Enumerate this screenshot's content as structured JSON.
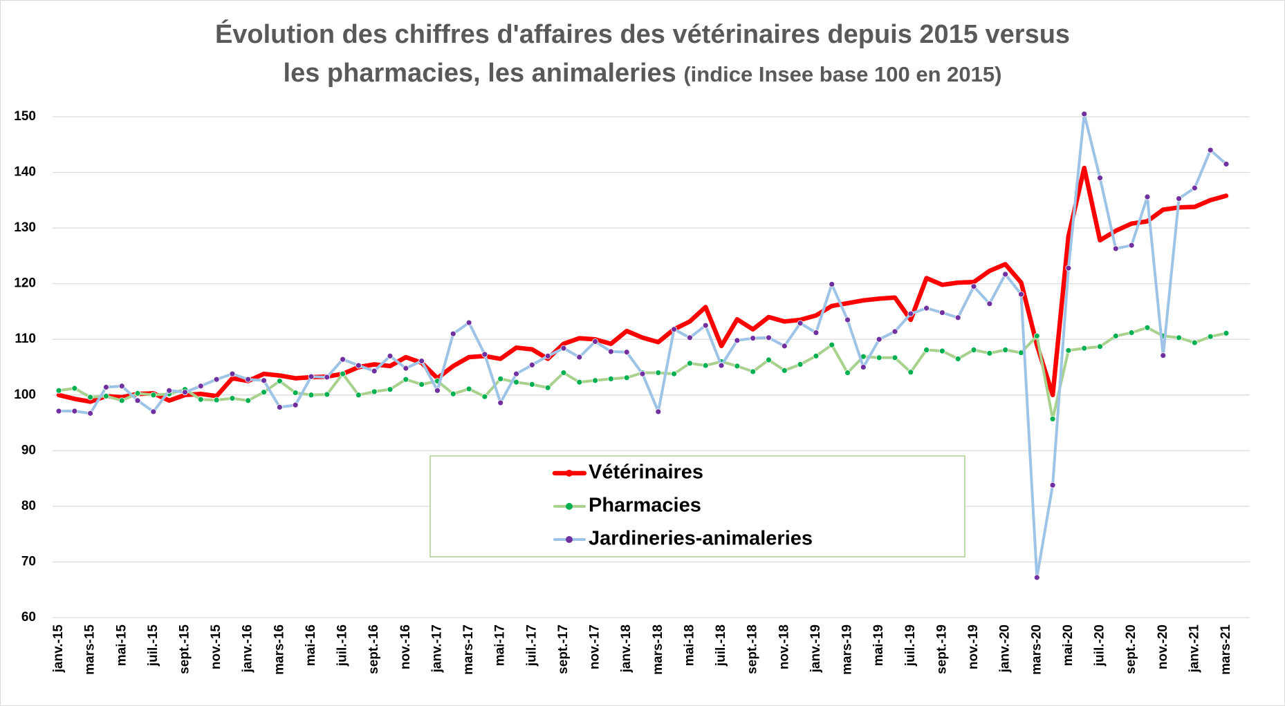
{
  "chart_data": {
    "type": "line",
    "title": "Évolution des chiffres d'affaires des vétérinaires depuis 2015 versus\nles pharmacies, les animaleries",
    "subtitle": "(indice Insee base 100 en 2015)",
    "categories": [
      "janv.-15",
      null,
      "mars-15",
      null,
      "mai-15",
      null,
      "juil.-15",
      null,
      "sept.-15",
      null,
      "nov.-15",
      null,
      "janv.-16",
      null,
      "mars-16",
      null,
      "mai-16",
      null,
      "juil.-16",
      null,
      "sept.-16",
      null,
      "nov.-16",
      null,
      "janv.-17",
      null,
      "mars-17",
      null,
      "mai-17",
      null,
      "juil.-17",
      null,
      "sept.-17",
      null,
      "nov.-17",
      null,
      "janv.-18",
      null,
      "mars-18",
      null,
      "mai-18",
      null,
      "juil.-18",
      null,
      "sept.-18",
      null,
      "nov.-18",
      null,
      "janv.-19",
      null,
      "mars-19",
      null,
      "mai-19",
      null,
      "juil.-19",
      null,
      "sept.-19",
      null,
      "nov.-19",
      null,
      "janv.-20",
      null,
      "mars-20",
      null,
      "mai-20",
      null,
      "juil.-20",
      null,
      "sept.-20",
      null,
      "nov.-20",
      null,
      "janv.-21",
      null,
      "mars-21"
    ],
    "series": [
      {
        "name": "Vétérinaires",
        "color": "#ff0000",
        "values": [
          100,
          99.3,
          98.8,
          99.8,
          99.6,
          100.2,
          100.3,
          99.0,
          100,
          100.2,
          99.8,
          103.0,
          102.5,
          103.8,
          103.5,
          103.0,
          103.2,
          103.3,
          103.8,
          105,
          105.5,
          105.2,
          106.8,
          105.8,
          103.0,
          105.2,
          106.8,
          107,
          106.5,
          108.5,
          108.2,
          106.5,
          109.2,
          110.2,
          110,
          109.2,
          111.5,
          110.3,
          109.5,
          111.8,
          113.2,
          115.8,
          108.8,
          113.6,
          111.8,
          114,
          113.2,
          113.5,
          114.3,
          116,
          116.5,
          117,
          117.3,
          117.5,
          113.5,
          121,
          119.8,
          120.2,
          120.3,
          122.3,
          123.5,
          120.2,
          109,
          100,
          128.5,
          140.8,
          127.8,
          129.5,
          130.8,
          131.2,
          133.3,
          133.7,
          133.8,
          135,
          135.8
        ]
      },
      {
        "name": "Pharmacies",
        "color": "#a9d18e",
        "marker_color": "#00b050",
        "values": [
          100.8,
          101.2,
          99.6,
          99.8,
          99,
          100.3,
          100,
          100.2,
          101,
          99.2,
          99.1,
          99.4,
          99,
          100.5,
          102.5,
          100.4,
          100,
          100.1,
          103.8,
          100,
          100.6,
          101,
          102.8,
          101.9,
          102.5,
          100.2,
          101.1,
          99.7,
          102.9,
          102.3,
          101.9,
          101.3,
          104,
          102.3,
          102.6,
          102.9,
          103.1,
          104,
          104,
          103.8,
          105.7,
          105.3,
          106,
          105.2,
          104.2,
          106.3,
          104.4,
          105.5,
          107,
          109,
          104,
          106.9,
          106.7,
          106.7,
          104.1,
          108.1,
          107.9,
          106.5,
          108.1,
          107.5,
          108.1,
          107.6,
          110.6,
          95.7,
          108,
          108.4,
          108.7,
          110.6,
          111.2,
          112.1,
          110.6,
          110.3,
          109.4,
          110.5,
          111.1
        ]
      },
      {
        "name": "Jardineries-animaleries",
        "color": "#9dc3e6",
        "marker_color": "#7030a0",
        "values": [
          97.1,
          97.1,
          96.7,
          101.4,
          101.6,
          99.0,
          97.0,
          100.8,
          100.5,
          101.6,
          102.8,
          103.8,
          102.8,
          102.6,
          97.8,
          98.2,
          103.3,
          103.2,
          106.4,
          105.3,
          104.3,
          107,
          104.8,
          106.1,
          100.8,
          111,
          113,
          107.3,
          98.6,
          103.8,
          105.4,
          107,
          108.4,
          106.8,
          109.6,
          107.8,
          107.7,
          103.8,
          97,
          111.8,
          110.3,
          112.5,
          105.3,
          109.8,
          110.2,
          110.3,
          108.8,
          112.9,
          111.2,
          119.9,
          113.5,
          105,
          110,
          111.4,
          114.6,
          115.6,
          114.8,
          113.9,
          119.5,
          116.4,
          121.7,
          118.1,
          67.2,
          83.8,
          122.8,
          150.5,
          139,
          126.3,
          126.9,
          135.6,
          107.1,
          135.3,
          137.2,
          144,
          141.5
        ]
      }
    ],
    "ylim": [
      60,
      150
    ],
    "yticks": [
      60,
      70,
      80,
      90,
      100,
      110,
      120,
      130,
      140,
      150
    ],
    "grid": true,
    "legend": "lower center"
  }
}
